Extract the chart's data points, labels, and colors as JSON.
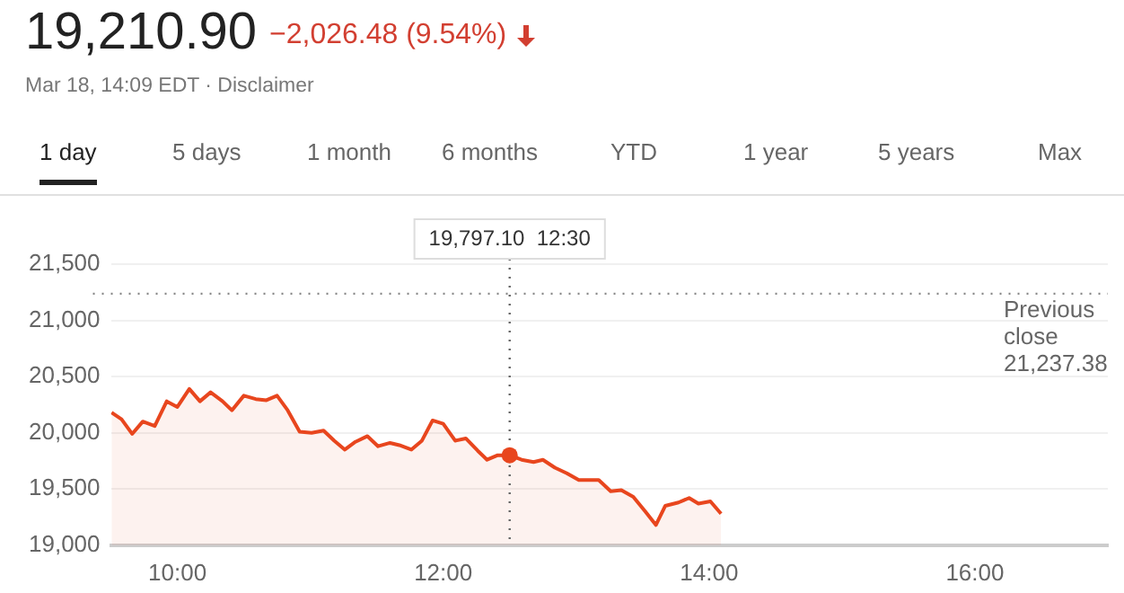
{
  "chart_data": {
    "type": "area",
    "title": "19,210.90",
    "subtitle": "−2,026.48 (9.54%)",
    "annotations": [
      "Mar 18, 14:09 EDT · Disclaimer",
      "1 day",
      "5 days",
      "1 month",
      "6 months",
      "YTD",
      "1 year",
      "5 years",
      "Max",
      "19,797.10  12:30"
    ],
    "series": [
      {
        "color": "#e8461e",
        "x": [
          9.505,
          9.58,
          9.66,
          9.74,
          9.83,
          9.92,
          10.0,
          10.09,
          10.17,
          10.25,
          10.34,
          10.41,
          10.5,
          10.59,
          10.67,
          10.75,
          10.83,
          10.92,
          11.01,
          11.1,
          11.18,
          11.26,
          11.34,
          11.43,
          11.51,
          11.6,
          11.67,
          11.76,
          11.84,
          11.92,
          12.0,
          12.09,
          12.17,
          12.26,
          12.33,
          12.41,
          12.5,
          12.59,
          12.68,
          12.75,
          12.84,
          12.93,
          13.02,
          13.17,
          13.26,
          13.34,
          13.43,
          13.52,
          13.6,
          13.67,
          13.77,
          13.85,
          13.92,
          14.01,
          14.09
        ],
        "values": [
          20180,
          20120,
          19990,
          20100,
          20060,
          20280,
          20230,
          20390,
          20280,
          20360,
          20280,
          20200,
          20330,
          20300,
          20290,
          20330,
          20200,
          20010,
          20000,
          20020,
          19930,
          19850,
          19920,
          19970,
          19880,
          19910,
          19890,
          19850,
          19930,
          20110,
          20080,
          19930,
          19950,
          19840,
          19760,
          19800,
          19800,
          19760,
          19740,
          19760,
          19690,
          19640,
          19580,
          19580,
          19480,
          19490,
          19430,
          19300,
          19180,
          19350,
          19380,
          19420,
          19370,
          19390,
          19280
        ]
      }
    ],
    "xlim": [
      9.5,
      17
    ],
    "xticks": [
      {
        "value": 10,
        "label": "10:00"
      },
      {
        "value": 12,
        "label": "12:00"
      },
      {
        "value": 14,
        "label": "14:00"
      },
      {
        "value": 16,
        "label": "16:00"
      }
    ],
    "ylim": [
      19000,
      21500
    ],
    "yticks": [
      {
        "value": 19000,
        "label": "19,000"
      },
      {
        "value": 19500,
        "label": "19,500"
      },
      {
        "value": 20000,
        "label": "20,000"
      },
      {
        "value": 20500,
        "label": "20,500"
      },
      {
        "value": 21000,
        "label": "21,000"
      },
      {
        "value": 21500,
        "label": "21,500"
      }
    ],
    "ref_lines": [
      {
        "axis": "y",
        "value": 21237.38,
        "label": "Previous close 21,237.38",
        "color": "#888888",
        "line_style": "dotted"
      },
      {
        "axis": "x",
        "value": 12.5,
        "color": "#666666",
        "line_style": "dotted"
      }
    ],
    "grid": "y",
    "legend": false,
    "marker": "none",
    "line_style": "solid"
  }
}
